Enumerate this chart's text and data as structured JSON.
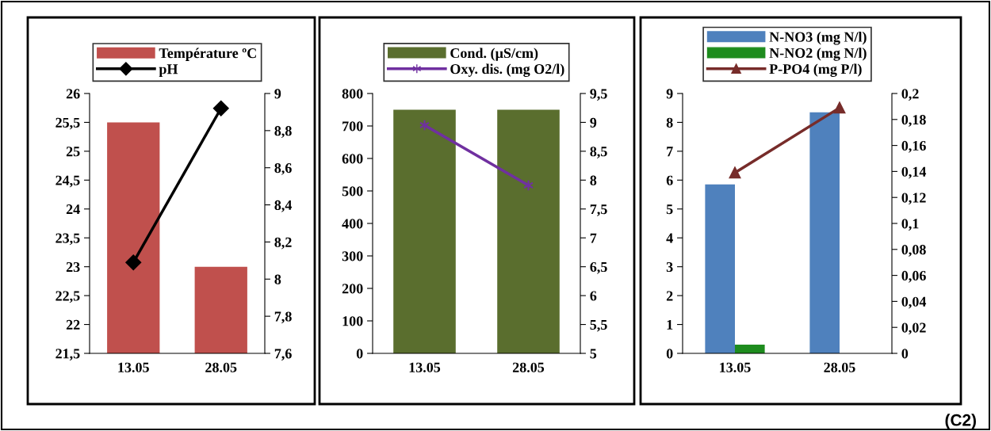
{
  "chart_data": [
    {
      "type": "bar",
      "categories": [
        "13.05",
        "28.05"
      ],
      "legend": "top",
      "ylim": [
        21.5,
        26
      ],
      "yticks": [
        {
          "value": 21.5,
          "label": "21,5"
        },
        22,
        {
          "value": 22.5,
          "label": "22,5"
        },
        23,
        {
          "value": 23.5,
          "label": "23,5"
        },
        24,
        {
          "value": 24.5,
          "label": "24,5"
        },
        25,
        {
          "value": 25.5,
          "label": "25,5"
        },
        26
      ],
      "y2lim": [
        7.6,
        9
      ],
      "y2ticks": [
        {
          "value": 7.6,
          "label": "7,6"
        },
        {
          "value": 7.8,
          "label": "7,8"
        },
        8,
        {
          "value": 8.2,
          "label": "8,2"
        },
        {
          "value": 8.4,
          "label": "8,4"
        },
        {
          "value": 8.6,
          "label": "8,6"
        },
        {
          "value": 8.8,
          "label": "8,8"
        },
        9
      ],
      "series": [
        {
          "name": "Température ºC",
          "color": "#c0504d",
          "values": [
            25.5,
            23
          ]
        },
        {
          "name": "pH",
          "type": "line",
          "axis": "y2",
          "color": "#000000",
          "marker": "diamond",
          "values": [
            8.09,
            8.92
          ]
        }
      ]
    },
    {
      "type": "bar",
      "categories": [
        "13.05",
        "28.05"
      ],
      "legend": "top",
      "ylim": [
        0,
        800
      ],
      "yticks": [
        0,
        100,
        200,
        300,
        400,
        500,
        600,
        700,
        800
      ],
      "y2lim": [
        5,
        9.5
      ],
      "y2ticks": [
        5,
        {
          "value": 5.5,
          "label": "5,5"
        },
        6,
        {
          "value": 6.5,
          "label": "6,5"
        },
        7,
        {
          "value": 7.5,
          "label": "7,5"
        },
        8,
        {
          "value": 8.5,
          "label": "8,5"
        },
        9,
        {
          "value": 9.5,
          "label": "9,5"
        }
      ],
      "series": [
        {
          "name": "Cond. (µS/cm)",
          "color": "#5a6e2e",
          "values": [
            750,
            750
          ]
        },
        {
          "name": "Oxy. dis. (mg O2/l)",
          "type": "line",
          "axis": "y2",
          "color": "#7030a0",
          "marker": "cross",
          "values": [
            8.95,
            7.91
          ]
        }
      ]
    },
    {
      "type": "bar",
      "categories": [
        "13.05",
        "28.05"
      ],
      "legend": "top",
      "ylim": [
        0,
        9
      ],
      "yticks": [
        0,
        1,
        2,
        3,
        4,
        5,
        6,
        7,
        8,
        9
      ],
      "y2lim": [
        0,
        0.2
      ],
      "y2ticks": [
        0,
        {
          "value": 0.02,
          "label": "0,02"
        },
        {
          "value": 0.04,
          "label": "0,04"
        },
        {
          "value": 0.06,
          "label": "0,06"
        },
        {
          "value": 0.08,
          "label": "0,08"
        },
        {
          "value": 0.1,
          "label": "0,1"
        },
        {
          "value": 0.12,
          "label": "0,12"
        },
        {
          "value": 0.14,
          "label": "0,14"
        },
        {
          "value": 0.16,
          "label": "0,16"
        },
        {
          "value": 0.18,
          "label": "0,18"
        },
        {
          "value": 0.2,
          "label": "0,2"
        }
      ],
      "annotations": [
        "(C2)"
      ],
      "series": [
        {
          "name": "N-NO3 (mg N/l)",
          "color": "#4f81bd",
          "values": [
            5.85,
            8.35
          ]
        },
        {
          "name": "N-NO2 (mg N/l)",
          "color": "#1e8c1e",
          "values": [
            0.3,
            null
          ]
        },
        {
          "name": "P-PO4 (mg P/l)",
          "type": "line",
          "axis": "y2",
          "color": "#772c2a",
          "marker": "triangle",
          "values": [
            0.139,
            0.189
          ]
        }
      ]
    }
  ]
}
